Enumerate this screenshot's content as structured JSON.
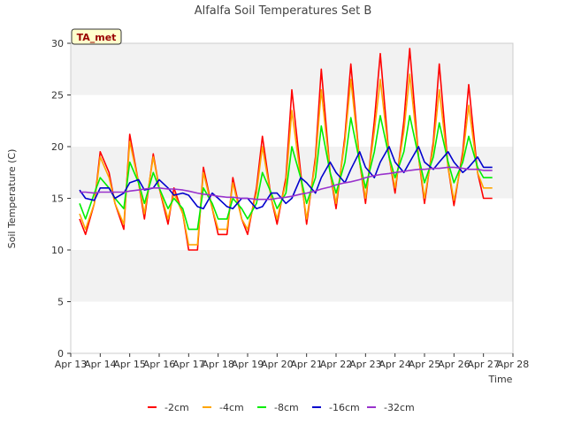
{
  "chart_data": {
    "type": "line",
    "title": "Alfalfa Soil Temperatures Set B",
    "xlabel": "Time",
    "ylabel": "Soil Temperature (C)",
    "ylim": [
      0,
      30
    ],
    "xlim": [
      "Apr 13",
      "Apr 28"
    ],
    "x_ticks": [
      "Apr 13",
      "Apr 14",
      "Apr 15",
      "Apr 16",
      "Apr 17",
      "Apr 18",
      "Apr 19",
      "Apr 20",
      "Apr 21",
      "Apr 22",
      "Apr 23",
      "Apr 24",
      "Apr 25",
      "Apr 26",
      "Apr 27",
      "Apr 28"
    ],
    "y_ticks": [
      0,
      5,
      10,
      15,
      20,
      25,
      30
    ],
    "grid": "alternating horizontal bands",
    "legend_position": "bottom",
    "annotation": "TA_met",
    "x": [
      "Apr 13.3",
      "Apr 13.5",
      "Apr 13.8",
      "Apr 14.0",
      "Apr 14.3",
      "Apr 14.5",
      "Apr 14.8",
      "Apr 15.0",
      "Apr 15.3",
      "Apr 15.5",
      "Apr 15.8",
      "Apr 16.0",
      "Apr 16.3",
      "Apr 16.5",
      "Apr 16.8",
      "Apr 17.0",
      "Apr 17.3",
      "Apr 17.5",
      "Apr 17.8",
      "Apr 18.0",
      "Apr 18.3",
      "Apr 18.5",
      "Apr 18.8",
      "Apr 19.0",
      "Apr 19.3",
      "Apr 19.5",
      "Apr 19.8",
      "Apr 20.0",
      "Apr 20.3",
      "Apr 20.5",
      "Apr 20.8",
      "Apr 21.0",
      "Apr 21.3",
      "Apr 21.5",
      "Apr 21.8",
      "Apr 22.0",
      "Apr 22.3",
      "Apr 22.5",
      "Apr 22.8",
      "Apr 23.0",
      "Apr 23.3",
      "Apr 23.5",
      "Apr 23.8",
      "Apr 24.0",
      "Apr 24.3",
      "Apr 24.5",
      "Apr 24.8",
      "Apr 25.0",
      "Apr 25.3",
      "Apr 25.5",
      "Apr 25.8",
      "Apr 26.0",
      "Apr 26.3",
      "Apr 26.5",
      "Apr 26.8",
      "Apr 27.0",
      "Apr 27.3"
    ],
    "series": [
      {
        "name": "-2cm",
        "color": "#ff0000",
        "values": [
          13.0,
          11.5,
          14.5,
          19.5,
          17.5,
          14.5,
          12.0,
          21.2,
          16.5,
          13.0,
          19.3,
          16.0,
          12.5,
          16.0,
          13.5,
          10.0,
          10.0,
          18.0,
          14.0,
          11.5,
          11.5,
          17.0,
          13.0,
          11.5,
          16.0,
          21.0,
          15.0,
          12.5,
          17.0,
          25.5,
          17.5,
          12.5,
          19.0,
          27.5,
          17.5,
          14.0,
          21.0,
          28.0,
          18.5,
          14.5,
          22.5,
          29.0,
          19.0,
          15.5,
          22.5,
          29.5,
          19.0,
          14.5,
          20.5,
          28.0,
          18.0,
          14.3,
          19.5,
          26.0,
          17.5,
          15.0,
          15.0
        ]
      },
      {
        "name": "-4cm",
        "color": "#ffa500",
        "values": [
          13.5,
          12.0,
          14.5,
          19.0,
          17.0,
          14.5,
          12.5,
          20.5,
          16.5,
          13.5,
          19.0,
          16.0,
          13.0,
          15.5,
          13.5,
          10.5,
          10.5,
          17.5,
          14.0,
          12.0,
          12.0,
          16.5,
          13.0,
          12.0,
          15.5,
          20.0,
          15.0,
          13.0,
          16.5,
          23.5,
          17.0,
          13.0,
          18.5,
          25.5,
          17.5,
          14.5,
          20.5,
          26.5,
          18.5,
          15.0,
          21.5,
          26.5,
          19.0,
          16.0,
          21.5,
          27.0,
          19.0,
          15.0,
          20.0,
          25.5,
          18.0,
          14.8,
          19.0,
          24.0,
          17.5,
          16.0,
          16.0
        ]
      },
      {
        "name": "-8cm",
        "color": "#00ee00",
        "values": [
          14.5,
          13.0,
          15.5,
          17.0,
          16.0,
          15.0,
          14.0,
          18.5,
          16.5,
          14.5,
          17.5,
          16.0,
          14.0,
          15.0,
          14.0,
          12.0,
          12.0,
          16.0,
          14.5,
          13.0,
          13.0,
          15.0,
          14.0,
          13.0,
          14.5,
          17.5,
          15.5,
          14.0,
          15.5,
          20.0,
          17.0,
          14.5,
          17.0,
          22.0,
          17.5,
          15.5,
          18.5,
          22.8,
          18.5,
          16.0,
          19.5,
          23.0,
          19.0,
          17.0,
          19.5,
          23.0,
          19.0,
          16.5,
          19.0,
          22.3,
          18.5,
          16.5,
          18.5,
          21.0,
          18.0,
          17.0,
          17.0
        ]
      },
      {
        "name": "-16cm",
        "color": "#0000cd",
        "values": [
          15.8,
          15.0,
          14.8,
          16.0,
          16.0,
          15.0,
          15.5,
          16.5,
          16.8,
          15.8,
          16.0,
          16.8,
          16.0,
          15.3,
          15.5,
          15.3,
          14.2,
          14.0,
          15.5,
          15.0,
          14.2,
          14.0,
          15.0,
          15.0,
          14.0,
          14.2,
          15.5,
          15.5,
          14.5,
          15.0,
          17.0,
          16.5,
          15.5,
          17.0,
          18.5,
          17.5,
          16.5,
          17.8,
          19.5,
          18.0,
          17.0,
          18.5,
          20.0,
          18.5,
          17.5,
          18.5,
          20.0,
          18.5,
          17.8,
          18.5,
          19.5,
          18.5,
          17.5,
          18.0,
          19.0,
          18.0,
          18.0
        ]
      },
      {
        "name": "-32cm",
        "color": "#9932cc",
        "values": [
          15.6,
          15.6,
          15.5,
          15.6,
          15.6,
          15.6,
          15.6,
          15.7,
          15.8,
          15.9,
          16.0,
          16.0,
          15.9,
          15.9,
          15.8,
          15.7,
          15.5,
          15.4,
          15.3,
          15.2,
          15.1,
          15.1,
          15.0,
          15.0,
          14.9,
          14.9,
          14.9,
          15.0,
          15.1,
          15.2,
          15.4,
          15.5,
          15.7,
          15.9,
          16.1,
          16.3,
          16.5,
          16.6,
          16.8,
          17.0,
          17.2,
          17.3,
          17.4,
          17.5,
          17.6,
          17.7,
          17.8,
          17.8,
          17.9,
          17.9,
          18.0,
          18.0,
          17.9,
          17.8,
          17.8,
          17.7,
          17.7
        ]
      }
    ]
  }
}
